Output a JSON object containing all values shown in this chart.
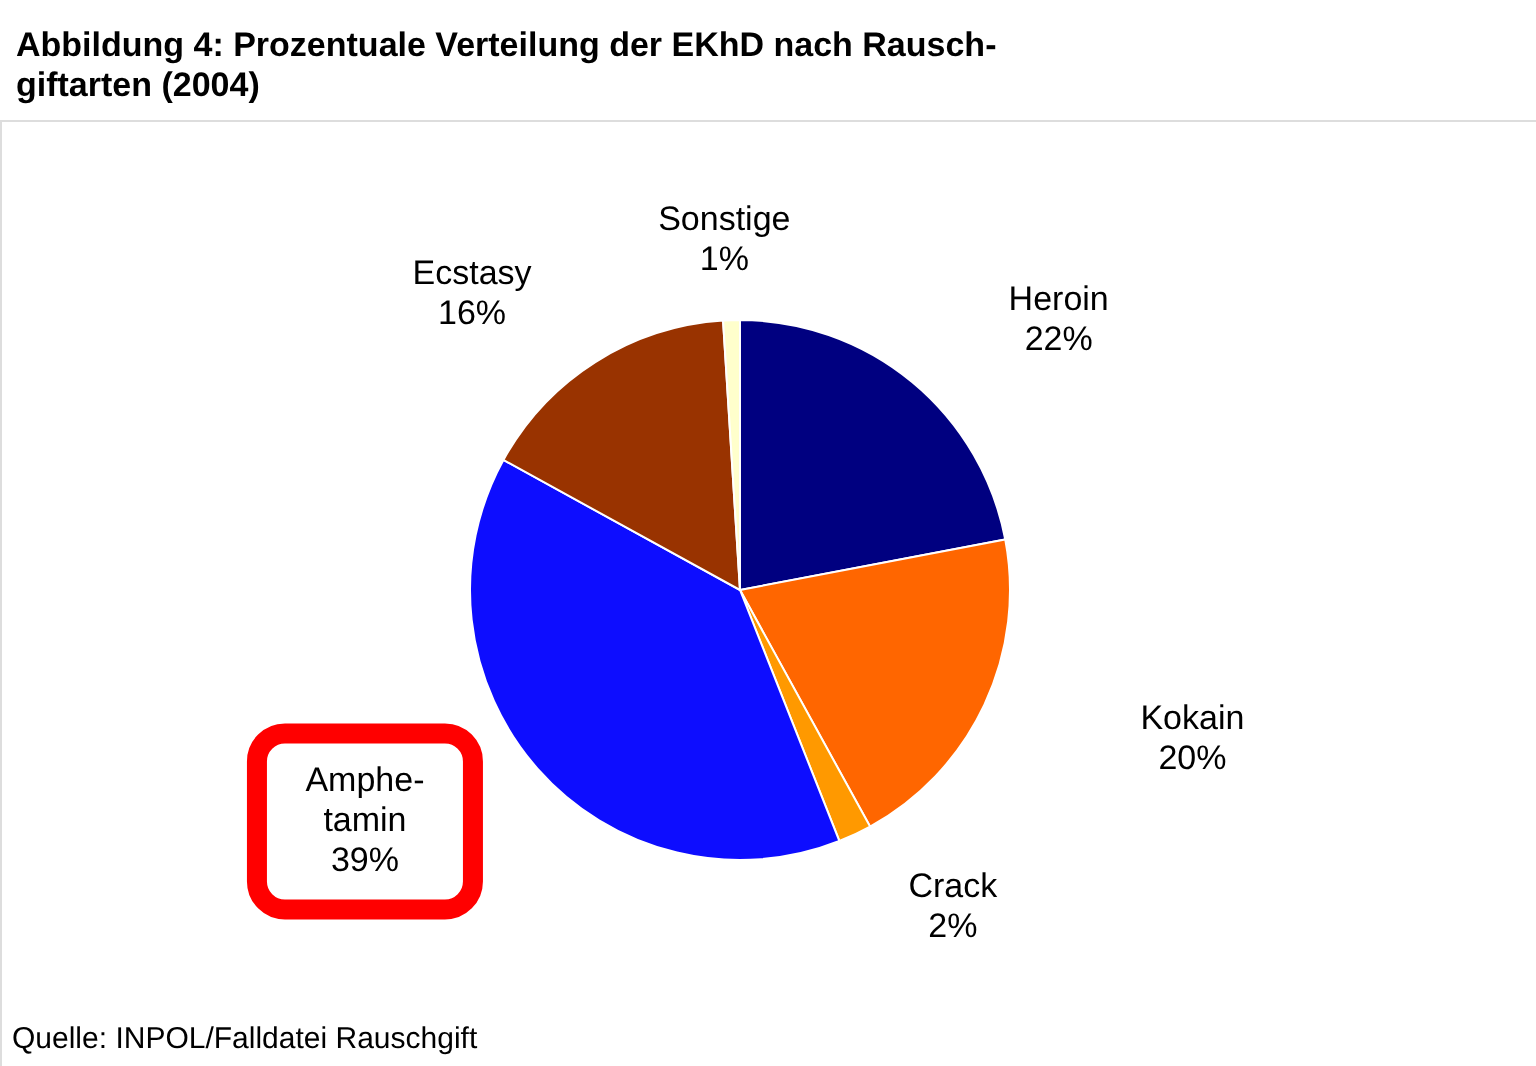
{
  "chart_data": {
    "type": "pie",
    "title": "Abbildung 4: Prozentuale Verteilung der EKhD nach Rausch-\ngiftarten (2004)",
    "categories": [
      "Heroin",
      "Kokain",
      "Crack",
      "Amphe-\ntamin",
      "Ecstasy",
      "Sonstige"
    ],
    "values": [
      22,
      20,
      2,
      39,
      16,
      1
    ],
    "value_labels": [
      "22%",
      "20%",
      "2%",
      "39%",
      "16%",
      "1%"
    ],
    "colors": [
      "#000080",
      "#ff6600",
      "#ff9900",
      "#0d0dff",
      "#993300",
      "#ffffcc"
    ],
    "annotations": [
      "Quelle: INPOL/Falldatei Rauschgift"
    ]
  }
}
